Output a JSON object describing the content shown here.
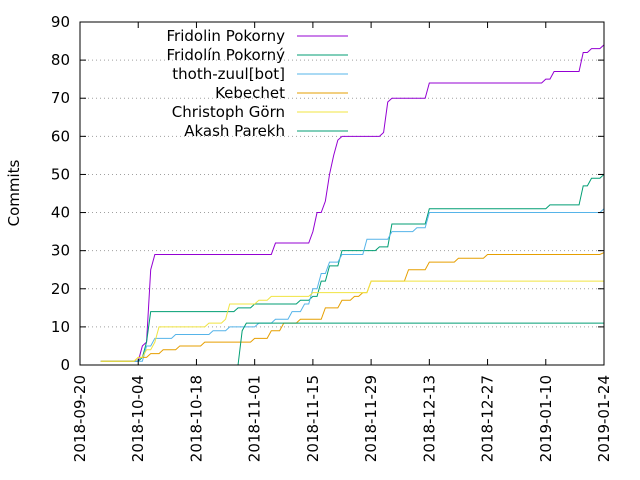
{
  "chart_data": {
    "type": "line",
    "title": "",
    "xlabel": "",
    "ylabel": "Commits",
    "xlim": [
      "2018-09-20",
      "2019-01-24"
    ],
    "ylim": [
      0,
      90
    ],
    "x_ticks": [
      "2018-09-20",
      "2018-10-04",
      "2018-10-18",
      "2018-11-01",
      "2018-11-15",
      "2018-11-29",
      "2018-12-13",
      "2018-12-27",
      "2019-01-10",
      "2019-01-24"
    ],
    "y_ticks": [
      0,
      10,
      20,
      30,
      40,
      50,
      60,
      70,
      80,
      90
    ],
    "grid": "horizontal dotted",
    "legend_position": "top-left",
    "series": [
      {
        "name": "Fridolin Pokorny",
        "color": "#9400d3",
        "points": [
          [
            "2018-09-25",
            1
          ],
          [
            "2018-10-04",
            1
          ],
          [
            "2018-10-05",
            5
          ],
          [
            "2018-10-06",
            6
          ],
          [
            "2018-10-07",
            25
          ],
          [
            "2018-10-08",
            29
          ],
          [
            "2018-11-05",
            29
          ],
          [
            "2018-11-06",
            32
          ],
          [
            "2018-11-14",
            32
          ],
          [
            "2018-11-15",
            35
          ],
          [
            "2018-11-16",
            40
          ],
          [
            "2018-11-18",
            43
          ],
          [
            "2018-11-19",
            50
          ],
          [
            "2018-11-20",
            55
          ],
          [
            "2018-11-21",
            59
          ],
          [
            "2018-11-22",
            60
          ],
          [
            "2018-11-30",
            60
          ],
          [
            "2018-12-02",
            61
          ],
          [
            "2018-12-03",
            69
          ],
          [
            "2018-12-04",
            70
          ],
          [
            "2018-12-12",
            70
          ],
          [
            "2018-12-13",
            74
          ],
          [
            "2019-01-10",
            75
          ],
          [
            "2019-01-12",
            77
          ],
          [
            "2019-01-18",
            77
          ],
          [
            "2019-01-19",
            82
          ],
          [
            "2019-01-21",
            83
          ],
          [
            "2019-01-24",
            84
          ]
        ]
      },
      {
        "name": "Fridolín Pokorný",
        "color": "#009e73",
        "points": [
          [
            "2018-09-25",
            1
          ],
          [
            "2018-10-04",
            1
          ],
          [
            "2018-10-05",
            2
          ],
          [
            "2018-10-06",
            6
          ],
          [
            "2018-10-07",
            14
          ],
          [
            "2018-10-26",
            14
          ],
          [
            "2018-10-28",
            15
          ],
          [
            "2018-11-01",
            16
          ],
          [
            "2018-11-08",
            16
          ],
          [
            "2018-11-12",
            17
          ],
          [
            "2018-11-15",
            18
          ],
          [
            "2018-11-17",
            22
          ],
          [
            "2018-11-19",
            26
          ],
          [
            "2018-11-22",
            30
          ],
          [
            "2018-11-30",
            30
          ],
          [
            "2018-12-01",
            31
          ],
          [
            "2018-12-04",
            37
          ],
          [
            "2018-12-10",
            37
          ],
          [
            "2018-12-13",
            41
          ],
          [
            "2019-01-10",
            41
          ],
          [
            "2019-01-11",
            42
          ],
          [
            "2019-01-18",
            42
          ],
          [
            "2019-01-19",
            47
          ],
          [
            "2019-01-21",
            49
          ],
          [
            "2019-01-23",
            49
          ],
          [
            "2019-01-24",
            50
          ]
        ]
      },
      {
        "name": "thoth-zuul[bot]",
        "color": "#56b4e9",
        "points": [
          [
            "2018-09-25",
            1
          ],
          [
            "2018-10-04",
            1
          ],
          [
            "2018-10-06",
            5
          ],
          [
            "2018-10-08",
            7
          ],
          [
            "2018-10-12",
            7
          ],
          [
            "2018-10-13",
            8
          ],
          [
            "2018-10-21",
            8
          ],
          [
            "2018-10-22",
            9
          ],
          [
            "2018-10-26",
            10
          ],
          [
            "2018-10-29",
            10
          ],
          [
            "2018-11-02",
            11
          ],
          [
            "2018-11-06",
            12
          ],
          [
            "2018-11-10",
            14
          ],
          [
            "2018-11-13",
            16
          ],
          [
            "2018-11-15",
            20
          ],
          [
            "2018-11-17",
            24
          ],
          [
            "2018-11-19",
            27
          ],
          [
            "2018-11-22",
            29
          ],
          [
            "2018-11-26",
            29
          ],
          [
            "2018-11-28",
            33
          ],
          [
            "2018-12-01",
            33
          ],
          [
            "2018-12-04",
            35
          ],
          [
            "2018-12-10",
            36
          ],
          [
            "2018-12-13",
            40
          ],
          [
            "2018-12-25",
            40
          ],
          [
            "2019-01-24",
            41
          ]
        ]
      },
      {
        "name": "Kebechet",
        "color": "#e69f00",
        "points": [
          [
            "2018-09-25",
            1
          ],
          [
            "2018-10-04",
            2
          ],
          [
            "2018-10-06",
            2
          ],
          [
            "2018-10-07",
            3
          ],
          [
            "2018-10-10",
            4
          ],
          [
            "2018-10-14",
            5
          ],
          [
            "2018-10-20",
            6
          ],
          [
            "2018-10-25",
            6
          ],
          [
            "2018-11-01",
            7
          ],
          [
            "2018-11-05",
            9
          ],
          [
            "2018-11-08",
            11
          ],
          [
            "2018-11-12",
            12
          ],
          [
            "2018-11-16",
            12
          ],
          [
            "2018-11-18",
            15
          ],
          [
            "2018-11-22",
            17
          ],
          [
            "2018-11-25",
            18
          ],
          [
            "2018-11-27",
            19
          ],
          [
            "2018-11-29",
            22
          ],
          [
            "2018-12-06",
            22
          ],
          [
            "2018-12-08",
            25
          ],
          [
            "2018-12-13",
            27
          ],
          [
            "2018-12-20",
            28
          ],
          [
            "2018-12-27",
            29
          ],
          [
            "2019-01-24",
            29.5
          ]
        ]
      },
      {
        "name": "Christoph Görn",
        "color": "#f0e442",
        "points": [
          [
            "2018-09-25",
            1
          ],
          [
            "2018-10-04",
            2
          ],
          [
            "2018-10-06",
            4
          ],
          [
            "2018-10-08",
            6
          ],
          [
            "2018-10-09",
            10
          ],
          [
            "2018-10-20",
            10
          ],
          [
            "2018-10-21",
            11
          ],
          [
            "2018-10-25",
            12
          ],
          [
            "2018-10-26",
            16
          ],
          [
            "2018-11-01",
            16
          ],
          [
            "2018-11-02",
            17
          ],
          [
            "2018-11-05",
            18
          ],
          [
            "2018-11-14",
            18
          ],
          [
            "2018-11-15",
            19
          ],
          [
            "2018-11-27",
            19
          ],
          [
            "2018-11-29",
            22
          ],
          [
            "2019-01-24",
            22
          ]
        ]
      },
      {
        "name": "Akash Parekh",
        "color": "#009e73",
        "points": [
          [
            "2018-10-28",
            0
          ],
          [
            "2018-10-29",
            9
          ],
          [
            "2018-10-30",
            11
          ],
          [
            "2019-01-24",
            11
          ]
        ]
      }
    ]
  }
}
